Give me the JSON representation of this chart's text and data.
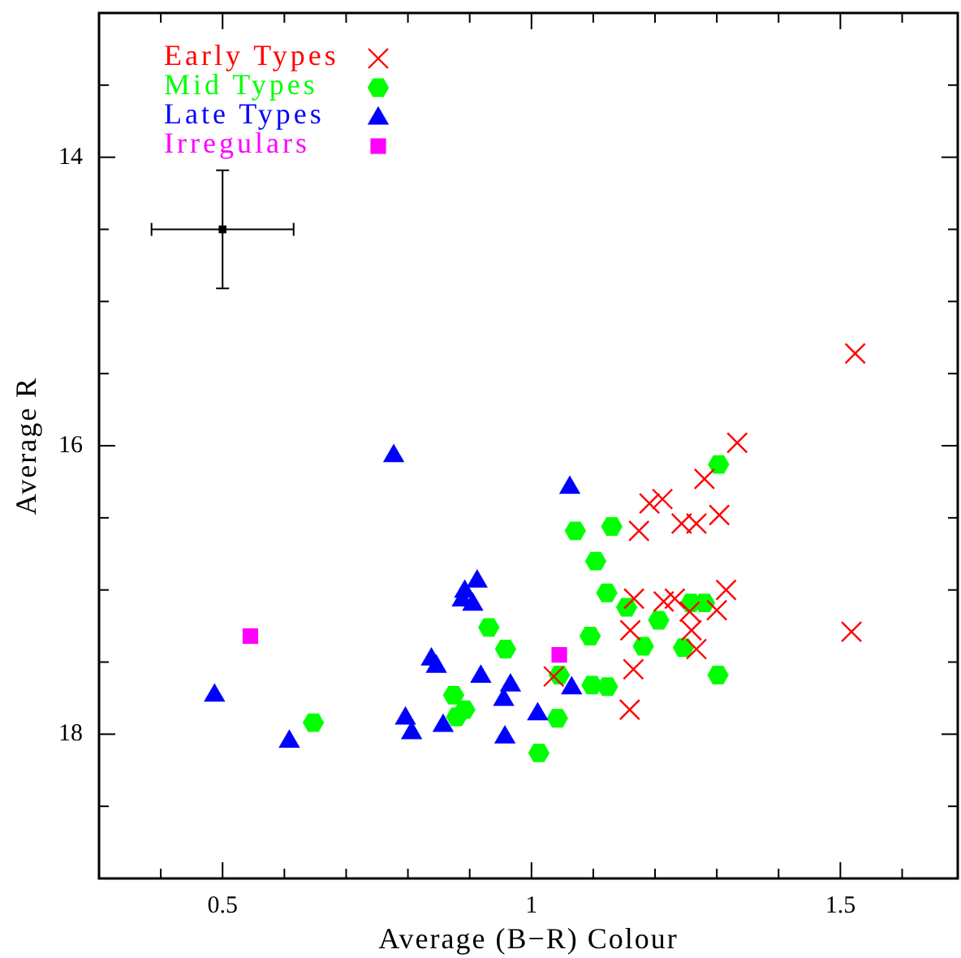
{
  "chart_data": {
    "type": "scatter",
    "xlabel": "Average (B−R) Colour",
    "ylabel": "Average R",
    "xlim": [
      0.3,
      1.69
    ],
    "ylim": [
      19,
      13
    ],
    "xticks": [
      {
        "value": 0.4,
        "label": null
      },
      {
        "value": 0.5,
        "label": "0.5"
      },
      {
        "value": 0.6,
        "label": null
      },
      {
        "value": 0.7,
        "label": null
      },
      {
        "value": 0.8,
        "label": null
      },
      {
        "value": 0.9,
        "label": null
      },
      1,
      {
        "value": 1.1,
        "label": null
      },
      {
        "value": 1.2,
        "label": null
      },
      {
        "value": 1.3,
        "label": null
      },
      {
        "value": 1.4,
        "label": null
      },
      {
        "value": 1.5,
        "label": "1.5"
      },
      {
        "value": 1.6,
        "label": null
      }
    ],
    "yticks": [
      {
        "value": 13.5,
        "label": null
      },
      14,
      {
        "value": 14.5,
        "label": null
      },
      {
        "value": 15,
        "label": null
      },
      {
        "value": 15.5,
        "label": null
      },
      16,
      {
        "value": 16.5,
        "label": null
      },
      {
        "value": 17,
        "label": null
      },
      {
        "value": 17.5,
        "label": null
      },
      18,
      {
        "value": 18.5,
        "label": null
      }
    ],
    "grid": false,
    "legend": "top left",
    "series": [
      {
        "name": "Early Types",
        "color": "#ff0000",
        "marker": "cross",
        "x": [
          1.524,
          1.518,
          1.333,
          1.28,
          1.191,
          1.212,
          1.174,
          1.243,
          1.267,
          1.304,
          1.166,
          1.214,
          1.232,
          1.256,
          1.3,
          1.315,
          1.16,
          1.259,
          1.267,
          1.165,
          1.159,
          1.036
        ],
        "values": [
          15.36,
          17.29,
          15.98,
          16.23,
          16.4,
          16.37,
          16.59,
          16.54,
          16.54,
          16.48,
          17.06,
          17.08,
          17.06,
          17.15,
          17.14,
          17.0,
          17.28,
          17.28,
          17.41,
          17.55,
          17.83,
          17.6
        ]
      },
      {
        "name": "Mid Types",
        "color": "#00ff00",
        "marker": "circle",
        "x": [
          1.303,
          1.071,
          1.13,
          1.104,
          1.122,
          1.154,
          1.206,
          1.258,
          1.28,
          1.095,
          1.181,
          1.246,
          1.302,
          0.958,
          0.931,
          1.045,
          1.098,
          1.123,
          1.042,
          1.012,
          0.647,
          0.874,
          0.892,
          0.879
        ],
        "values": [
          16.13,
          16.59,
          16.56,
          16.8,
          17.02,
          17.12,
          17.21,
          17.09,
          17.09,
          17.32,
          17.39,
          17.4,
          17.59,
          17.41,
          17.26,
          17.59,
          17.66,
          17.67,
          17.89,
          18.13,
          17.92,
          17.73,
          17.83,
          17.88
        ]
      },
      {
        "name": "Late Types",
        "color": "#0000ff",
        "marker": "triangle",
        "x": [
          0.777,
          0.487,
          0.608,
          0.796,
          0.806,
          0.857,
          0.838,
          0.846,
          0.892,
          0.912,
          0.888,
          0.905,
          0.918,
          0.966,
          0.955,
          0.957,
          1.01,
          1.062,
          1.065
        ],
        "values": [
          16.06,
          17.72,
          18.04,
          17.88,
          17.98,
          17.93,
          17.47,
          17.52,
          17.0,
          16.93,
          17.06,
          17.09,
          17.59,
          17.65,
          17.75,
          18.01,
          17.85,
          16.28,
          17.67
        ]
      },
      {
        "name": "Irregulars",
        "color": "#ff00ff",
        "marker": "square",
        "x": [
          0.545,
          1.045
        ],
        "values": [
          17.32,
          17.45
        ]
      },
      {
        "color": "#000000",
        "marker": "square",
        "x": [
          0.5
        ],
        "values": [
          14.5
        ],
        "errors": [
          0.41
        ],
        "xerrors": [
          0.115
        ]
      }
    ]
  }
}
